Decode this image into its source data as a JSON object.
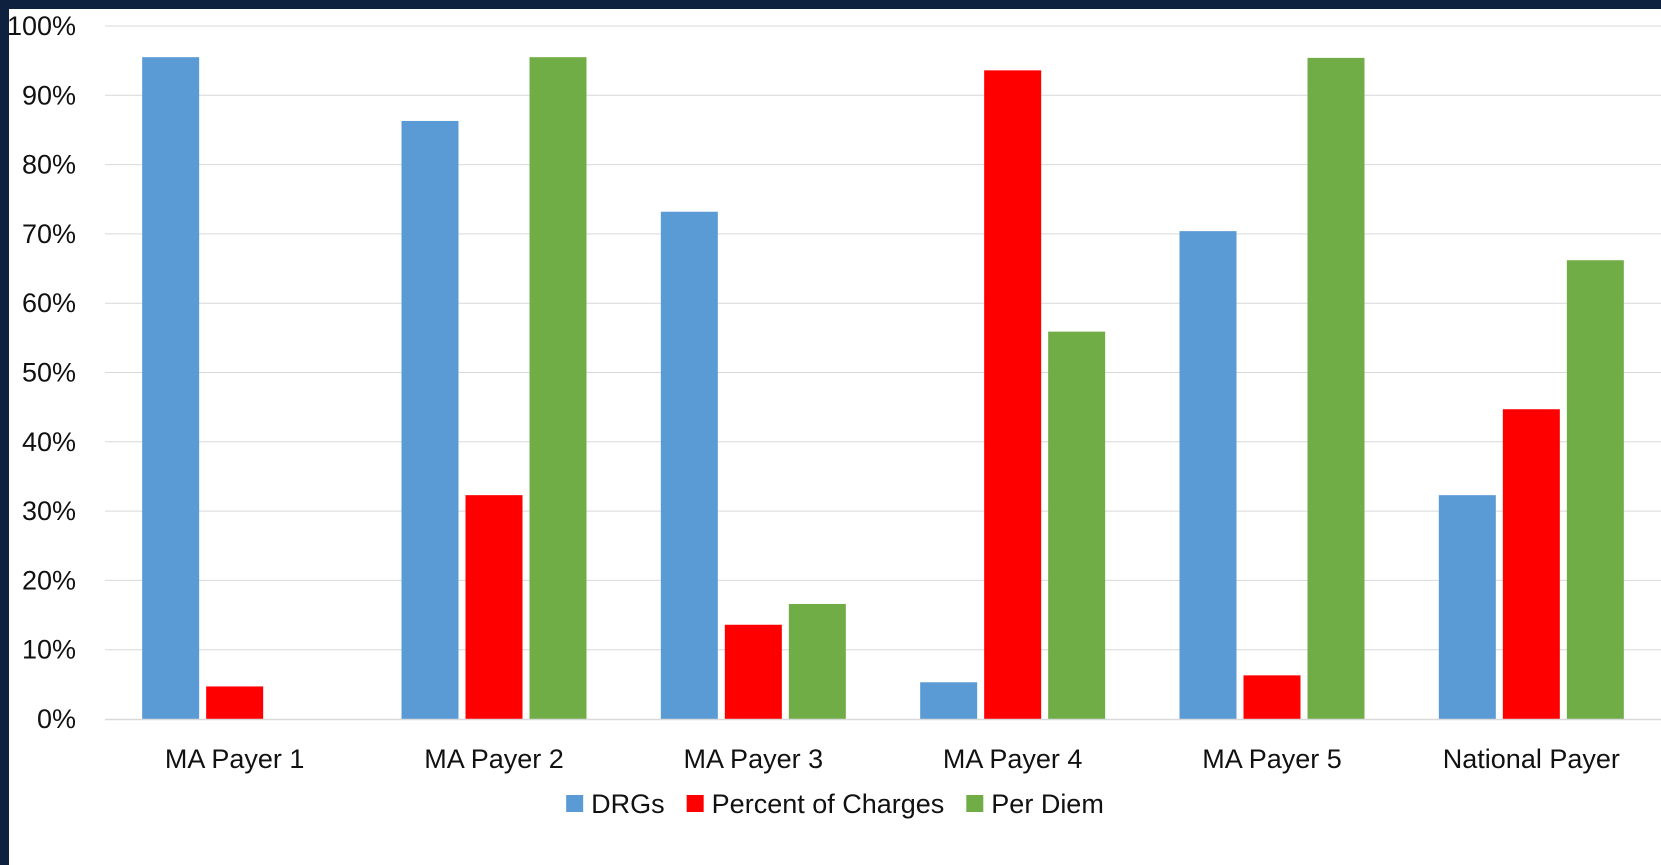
{
  "chart_data": {
    "type": "bar",
    "title": "",
    "xlabel": "",
    "ylabel": "",
    "categories": [
      "MA Payer 1",
      "MA Payer 2",
      "MA Payer 3",
      "MA Payer 4",
      "MA Payer 5",
      "National Payer"
    ],
    "series": [
      {
        "name": "DRGs",
        "color": "#5b9bd5",
        "values": [
          95.5,
          86.3,
          73.2,
          5.3,
          70.4,
          32.3
        ]
      },
      {
        "name": "Percent of Charges",
        "color": "#ff0000",
        "values": [
          4.7,
          32.3,
          13.6,
          93.6,
          6.3,
          44.7
        ]
      },
      {
        "name": "Per Diem",
        "color": "#70ad47",
        "values": [
          0,
          95.5,
          16.6,
          55.9,
          95.4,
          66.2
        ]
      }
    ],
    "ylim": [
      0,
      100
    ],
    "yticks": [
      "0%",
      "10%",
      "20%",
      "30%",
      "40%",
      "50%",
      "60%",
      "70%",
      "80%",
      "90%",
      "100%"
    ],
    "grid": true,
    "legend_position": "bottom"
  }
}
